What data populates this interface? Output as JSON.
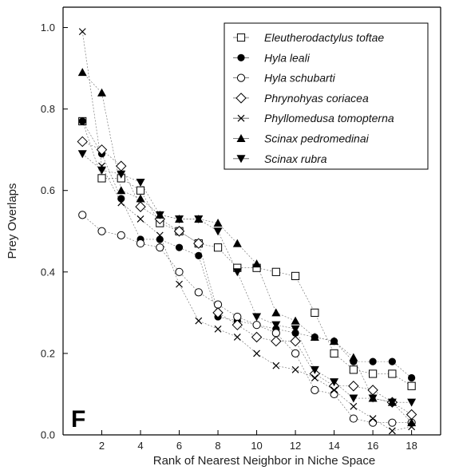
{
  "chart_data": {
    "type": "scatter",
    "xlabel": "Rank of Nearest Neighbor in Niche Space",
    "ylabel": "Prey Overlaps",
    "xlim": [
      0,
      19.5
    ],
    "ylim": [
      0,
      1.05
    ],
    "xticks": [
      2,
      4,
      6,
      8,
      10,
      12,
      14,
      16,
      18
    ],
    "yticks": [
      0.0,
      0.2,
      0.4,
      0.6,
      0.8,
      1.0
    ],
    "xtick_labels": [
      "2",
      "4",
      "6",
      "8",
      "10",
      "12",
      "14",
      "16",
      "18"
    ],
    "ytick_labels": [
      "0.0",
      "0.2",
      "0.4",
      "0.6",
      "0.8",
      "1.0"
    ],
    "panel_label": "F",
    "legend_position": "top-right",
    "series": [
      {
        "name": "Eleutherodactylus toftae",
        "marker": "square-open",
        "x": [
          1,
          2,
          3,
          4,
          5,
          6,
          7,
          8,
          9,
          10,
          11,
          12,
          13,
          14,
          15,
          16,
          17,
          18
        ],
        "y": [
          0.77,
          0.63,
          0.63,
          0.6,
          0.52,
          0.5,
          0.47,
          0.46,
          0.41,
          0.41,
          0.4,
          0.39,
          0.3,
          0.2,
          0.16,
          0.15,
          0.15,
          0.12
        ]
      },
      {
        "name": "Hyla leali",
        "marker": "circle-filled",
        "x": [
          1,
          2,
          3,
          4,
          5,
          6,
          7,
          8,
          9,
          10,
          11,
          12,
          13,
          14,
          15,
          16,
          17,
          18
        ],
        "y": [
          0.77,
          0.69,
          0.58,
          0.48,
          0.48,
          0.46,
          0.44,
          0.29,
          0.28,
          0.27,
          0.26,
          0.25,
          0.24,
          0.23,
          0.18,
          0.18,
          0.18,
          0.14
        ]
      },
      {
        "name": "Hyla schubarti",
        "marker": "circle-open",
        "x": [
          1,
          2,
          3,
          4,
          5,
          6,
          7,
          8,
          9,
          10,
          11,
          12,
          13,
          14,
          15,
          16,
          17,
          18
        ],
        "y": [
          0.54,
          0.5,
          0.49,
          0.47,
          0.46,
          0.4,
          0.35,
          0.32,
          0.29,
          0.27,
          0.25,
          0.2,
          0.11,
          0.1,
          0.04,
          0.03,
          0.03,
          0.03
        ]
      },
      {
        "name": "Phrynohyas coriacea",
        "marker": "diamond-open",
        "x": [
          1,
          2,
          3,
          4,
          5,
          6,
          7,
          8,
          9,
          10,
          11,
          12,
          13,
          14,
          15,
          16,
          17,
          18
        ],
        "y": [
          0.72,
          0.7,
          0.66,
          0.56,
          0.53,
          0.5,
          0.47,
          0.3,
          0.27,
          0.24,
          0.23,
          0.23,
          0.15,
          0.12,
          0.12,
          0.11,
          0.08,
          0.05
        ]
      },
      {
        "name": "Phyllomedusa tomopterna",
        "marker": "cross",
        "x": [
          1,
          2,
          3,
          4,
          5,
          6,
          7,
          8,
          9,
          10,
          11,
          12,
          13,
          14,
          15,
          16,
          17,
          18
        ],
        "y": [
          0.99,
          0.66,
          0.57,
          0.53,
          0.49,
          0.37,
          0.28,
          0.26,
          0.24,
          0.2,
          0.17,
          0.16,
          0.14,
          0.11,
          0.07,
          0.04,
          0.01,
          0.02
        ]
      },
      {
        "name": "Scinax pedromedinai",
        "marker": "triangle-up-filled",
        "x": [
          1,
          2,
          3,
          4,
          5,
          6,
          7,
          8,
          9,
          10,
          11,
          12,
          13,
          14,
          15,
          16,
          17,
          18
        ],
        "y": [
          0.89,
          0.84,
          0.6,
          0.58,
          0.54,
          0.53,
          0.53,
          0.52,
          0.47,
          0.42,
          0.3,
          0.28,
          0.24,
          0.23,
          0.19,
          0.09,
          0.08,
          0.03
        ]
      },
      {
        "name": "Scinax rubra",
        "marker": "triangle-down-filled",
        "x": [
          1,
          2,
          3,
          4,
          5,
          6,
          7,
          8,
          9,
          10,
          11,
          12,
          13,
          14,
          15,
          16,
          17,
          18
        ],
        "y": [
          0.69,
          0.65,
          0.64,
          0.62,
          0.54,
          0.53,
          0.53,
          0.5,
          0.4,
          0.29,
          0.27,
          0.26,
          0.16,
          0.13,
          0.09,
          0.09,
          0.08,
          0.08
        ]
      }
    ]
  }
}
